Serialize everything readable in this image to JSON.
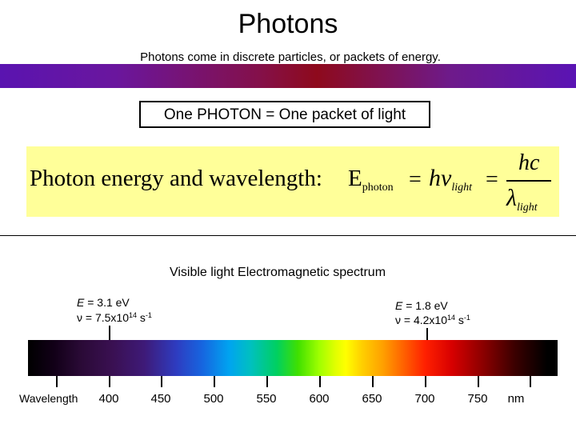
{
  "title": "Photons",
  "subtitle": "Photons come in discrete particles, or packets of energy.",
  "photon_box": "One PHOTON = One packet of light",
  "formula": {
    "label": "Photon energy and wavelength:",
    "e": "E",
    "e_sub": "photon",
    "eq1": "=",
    "h": "h",
    "nu": "ν",
    "nu_sub": "light",
    "eq2": "=",
    "hc": "hc",
    "lambda": "λ",
    "lambda_sub": "light"
  },
  "spectrum": {
    "title": "Visible light Electromagnetic spectrum",
    "left": {
      "e_label": "E",
      "e_value": " = 3.1 eV",
      "nu_label": "ν = 7.5x10",
      "nu_exp": "14",
      "nu_unit": " s",
      "nu_unit_exp": "-1"
    },
    "right": {
      "e_label": "E",
      "e_value": " = 1.8 eV",
      "nu_label": "ν = 4.2x10",
      "nu_exp": "14",
      "nu_unit": " s",
      "nu_unit_exp": "-1"
    },
    "axis_label": "Wavelength",
    "unit": "nm",
    "ticks": [
      "400",
      "450",
      "500",
      "550",
      "600",
      "650",
      "700",
      "750"
    ]
  },
  "colors": {
    "band_start": "#5a14b0",
    "band_mid": "#8e0a1c",
    "formula_bg": "#ffff99"
  }
}
